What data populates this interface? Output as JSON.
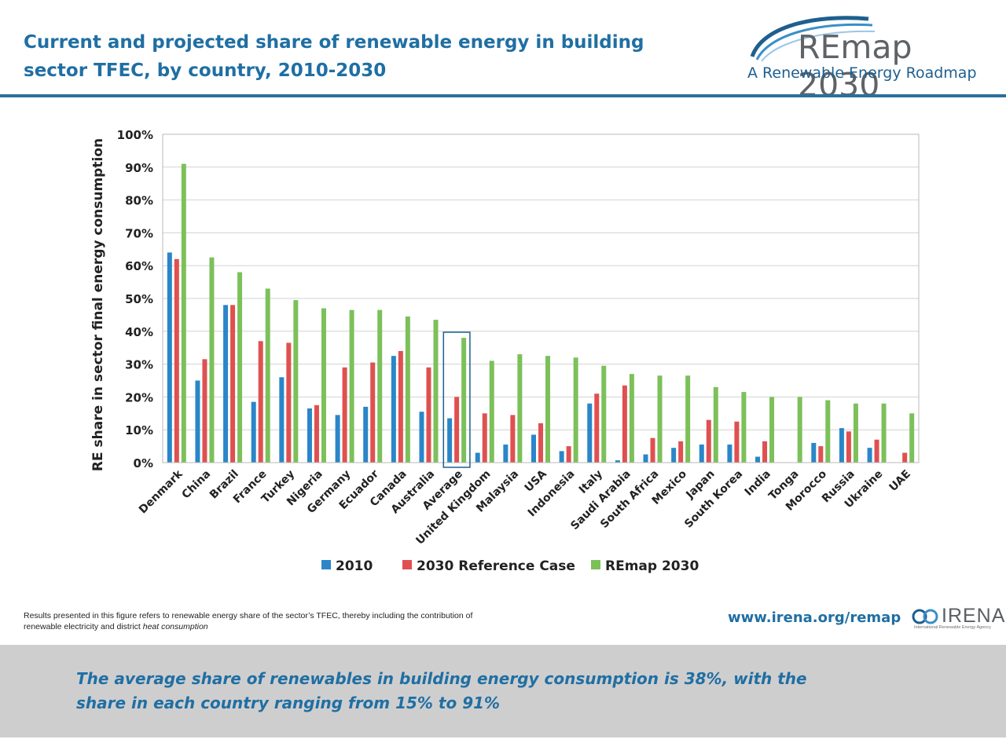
{
  "header": {
    "title": "Current and projected share of renewable energy in building sector TFEC, by country, 2010-2030"
  },
  "logo": {
    "main": "REmap 2030",
    "sub": "A Renewable Energy Roadmap"
  },
  "chart_data": {
    "type": "bar",
    "ylabel": "RE share in sector final energy consumption",
    "ylim": [
      0,
      100
    ],
    "y_ticks": [
      "0%",
      "10%",
      "20%",
      "30%",
      "40%",
      "50%",
      "60%",
      "70%",
      "80%",
      "90%",
      "100%"
    ],
    "grid": true,
    "legend_position": "bottom",
    "highlighted_category": "Average",
    "categories": [
      "Denmark",
      "China",
      "Brazil",
      "France",
      "Turkey",
      "Nigeria",
      "Germany",
      "Ecuador",
      "Canada",
      "Australia",
      "Average",
      "United Kingdom",
      "Malaysia",
      "USA",
      "Indonesia",
      "Italy",
      "Saudi Arabia",
      "South Africa",
      "Mexico",
      "Japan",
      "South Korea",
      "India",
      "Tonga",
      "Morocco",
      "Russia",
      "Ukraine",
      "UAE"
    ],
    "series": [
      {
        "name": "2010",
        "color": "#2a86c8",
        "values": [
          64,
          25,
          48,
          18.5,
          26,
          16.5,
          14.5,
          17,
          32.5,
          15.5,
          13.5,
          3,
          5.5,
          8.5,
          3.5,
          18,
          0.7,
          2.5,
          4.5,
          5.5,
          5.5,
          1.8,
          0,
          6,
          10.5,
          4.5,
          0
        ]
      },
      {
        "name": "2030 Reference Case",
        "color": "#e05050",
        "values": [
          62,
          31.5,
          48,
          37,
          36.5,
          17.5,
          29,
          30.5,
          34,
          29,
          20,
          15,
          14.5,
          12,
          5,
          21,
          23.5,
          7.5,
          6.5,
          13,
          12.5,
          6.5,
          0,
          5,
          9.5,
          7,
          3
        ]
      },
      {
        "name": "REmap 2030",
        "color": "#7cc05a",
        "values": [
          91,
          62.5,
          58,
          53,
          49.5,
          47,
          46.5,
          46.5,
          44.5,
          43.5,
          38,
          31,
          33,
          32.5,
          32,
          29.5,
          27,
          26.5,
          26.5,
          23,
          21.5,
          20,
          20,
          19,
          18,
          18,
          15
        ]
      }
    ]
  },
  "note": {
    "text_main": "Results presented in this figure refers to renewable energy share of the sector’s TFEC, thereby including the contribution of renewable electricity and district ",
    "text_italic": "heat consumption"
  },
  "links": {
    "url": "www.irena.org/remap"
  },
  "irena_logo": {
    "word": "IRENA",
    "sub": "International Renewable Energy Agency"
  },
  "footer": {
    "text": "The average share of renewables in building energy consumption is 38%, with the share in each country ranging from 15% to 91%"
  },
  "colors": {
    "title": "#1f6fa3",
    "rule": "#2a6f9b",
    "footer_bg": "#cfcecf"
  }
}
